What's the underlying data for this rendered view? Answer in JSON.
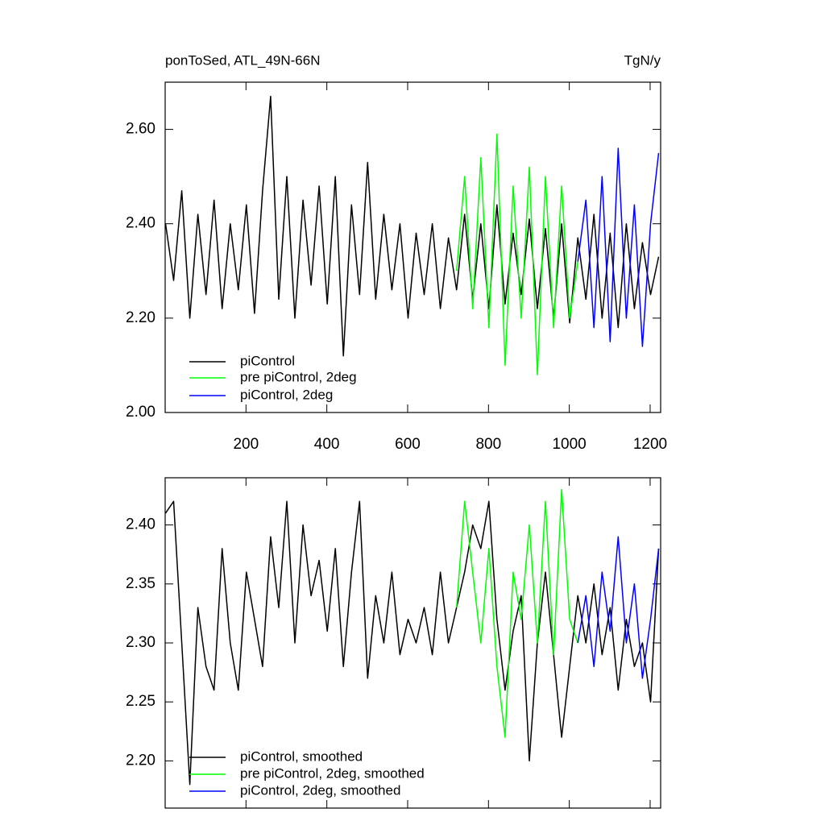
{
  "chart_data": [
    {
      "type": "line",
      "title": "ponToSed, ATL_49N-66N",
      "units": "TgN/y",
      "xlim": [
        0,
        1226
      ],
      "xticks": [
        200,
        400,
        600,
        800,
        1000,
        1200
      ],
      "show_xtick_labels": true,
      "ylim": [
        2.0,
        2.7
      ],
      "yticks": [
        {
          "value": 2.0,
          "label": "2.00"
        },
        {
          "value": 2.2,
          "label": "2.20"
        },
        {
          "value": 2.4,
          "label": "2.40"
        },
        {
          "value": 2.6,
          "label": "2.60"
        }
      ],
      "legend": "lower left",
      "series": [
        {
          "name": "piControl",
          "color": "#000000",
          "x": [
            1,
            21,
            41,
            61,
            81,
            101,
            121,
            141,
            161,
            181,
            201,
            221,
            241,
            261,
            281,
            301,
            321,
            341,
            361,
            381,
            401,
            421,
            441,
            461,
            481,
            501,
            521,
            541,
            561,
            581,
            601,
            621,
            641,
            661,
            681,
            701,
            721,
            741,
            761,
            781,
            801,
            821,
            841,
            861,
            881,
            901,
            921,
            941,
            961,
            981,
            1001,
            1021,
            1041,
            1061,
            1081,
            1101,
            1121,
            1141,
            1161,
            1181,
            1201,
            1221
          ],
          "values": [
            2.4,
            2.28,
            2.47,
            2.2,
            2.42,
            2.25,
            2.45,
            2.22,
            2.4,
            2.26,
            2.44,
            2.21,
            2.47,
            2.67,
            2.24,
            2.5,
            2.2,
            2.45,
            2.27,
            2.48,
            2.23,
            2.5,
            2.12,
            2.44,
            2.25,
            2.53,
            2.24,
            2.42,
            2.26,
            2.4,
            2.2,
            2.38,
            2.25,
            2.4,
            2.22,
            2.37,
            2.26,
            2.42,
            2.24,
            2.4,
            2.22,
            2.44,
            2.23,
            2.38,
            2.25,
            2.41,
            2.22,
            2.39,
            2.2,
            2.4,
            2.19,
            2.37,
            2.24,
            2.42,
            2.2,
            2.38,
            2.18,
            2.4,
            2.22,
            2.36,
            2.25,
            2.33
          ]
        },
        {
          "name": "pre piControl, 2deg",
          "color": "#00ff00",
          "x": [
            721,
            741,
            761,
            781,
            801,
            821,
            841,
            861,
            881,
            901,
            921,
            941,
            961,
            981,
            1001,
            1021
          ],
          "values": [
            2.3,
            2.5,
            2.22,
            2.54,
            2.18,
            2.59,
            2.1,
            2.48,
            2.2,
            2.52,
            2.08,
            2.5,
            2.18,
            2.48,
            2.2,
            2.32
          ]
        },
        {
          "name": "piControl, 2deg",
          "color": "#0000ff",
          "x": [
            1021,
            1041,
            1061,
            1081,
            1101,
            1121,
            1141,
            1161,
            1181,
            1201,
            1221
          ],
          "values": [
            2.32,
            2.45,
            2.18,
            2.5,
            2.15,
            2.56,
            2.2,
            2.44,
            2.14,
            2.4,
            2.55
          ]
        }
      ]
    },
    {
      "type": "line",
      "xlim": [
        0,
        1226
      ],
      "xticks": [
        200,
        400,
        600,
        800,
        1000,
        1200
      ],
      "show_xtick_labels": false,
      "ylim": [
        2.16,
        2.44
      ],
      "yticks": [
        {
          "value": 2.2,
          "label": "2.20"
        },
        {
          "value": 2.25,
          "label": "2.25"
        },
        {
          "value": 2.3,
          "label": "2.30"
        },
        {
          "value": 2.35,
          "label": "2.35"
        },
        {
          "value": 2.4,
          "label": "2.40"
        }
      ],
      "legend": "lower left",
      "series": [
        {
          "name": "piControl, smoothed",
          "color": "#000000",
          "x": [
            1,
            21,
            41,
            61,
            81,
            101,
            121,
            141,
            161,
            181,
            201,
            221,
            241,
            261,
            281,
            301,
            321,
            341,
            361,
            381,
            401,
            421,
            441,
            461,
            481,
            501,
            521,
            541,
            561,
            581,
            601,
            621,
            641,
            661,
            681,
            701,
            721,
            741,
            761,
            781,
            801,
            821,
            841,
            861,
            881,
            901,
            921,
            941,
            961,
            981,
            1001,
            1021,
            1041,
            1061,
            1081,
            1101,
            1121,
            1141,
            1161,
            1181,
            1201,
            1221
          ],
          "values": [
            2.41,
            2.42,
            2.3,
            2.18,
            2.33,
            2.28,
            2.26,
            2.38,
            2.3,
            2.26,
            2.36,
            2.32,
            2.28,
            2.39,
            2.33,
            2.42,
            2.3,
            2.4,
            2.34,
            2.37,
            2.31,
            2.38,
            2.28,
            2.36,
            2.42,
            2.27,
            2.34,
            2.3,
            2.36,
            2.29,
            2.32,
            2.3,
            2.33,
            2.29,
            2.36,
            2.3,
            2.33,
            2.36,
            2.4,
            2.38,
            2.42,
            2.32,
            2.26,
            2.31,
            2.34,
            2.2,
            2.3,
            2.36,
            2.29,
            2.22,
            2.28,
            2.34,
            2.3,
            2.35,
            2.29,
            2.33,
            2.26,
            2.32,
            2.28,
            2.3,
            2.25,
            2.38
          ]
        },
        {
          "name": "pre piControl, 2deg, smoothed",
          "color": "#00ff00",
          "x": [
            721,
            741,
            761,
            781,
            801,
            821,
            841,
            861,
            881,
            901,
            921,
            941,
            961,
            981,
            1001,
            1021
          ],
          "values": [
            2.33,
            2.42,
            2.36,
            2.3,
            2.38,
            2.28,
            2.22,
            2.36,
            2.32,
            2.4,
            2.3,
            2.42,
            2.29,
            2.43,
            2.32,
            2.3
          ]
        },
        {
          "name": "piControl, 2deg, smoothed",
          "color": "#0000ff",
          "x": [
            1021,
            1041,
            1061,
            1081,
            1101,
            1121,
            1141,
            1161,
            1181,
            1201,
            1221
          ],
          "values": [
            2.3,
            2.34,
            2.28,
            2.36,
            2.31,
            2.39,
            2.3,
            2.35,
            2.27,
            2.32,
            2.38
          ]
        }
      ]
    }
  ]
}
